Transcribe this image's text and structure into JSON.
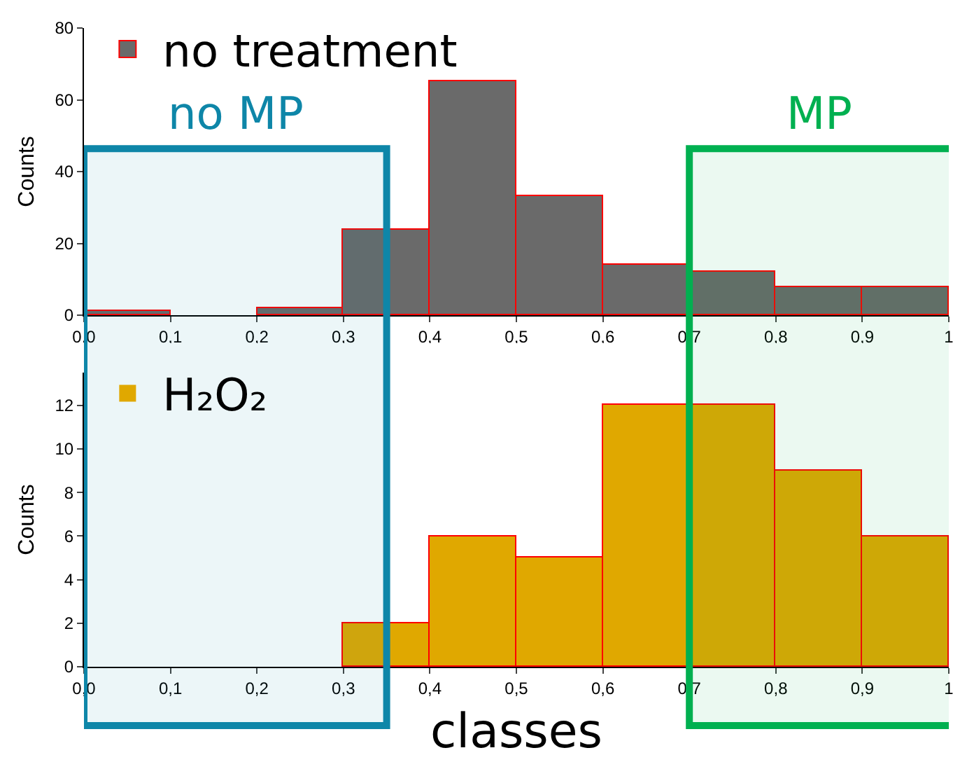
{
  "chart_data": [
    {
      "type": "histogram",
      "ylabel": "Counts",
      "bins": [
        0,
        0.1,
        0.2,
        0.3,
        0.4,
        0.5,
        0.6,
        0.7,
        0.8,
        0.9,
        1
      ],
      "series": [
        {
          "name": "no treatment",
          "color": "#6a6a6a",
          "values": [
            1,
            0,
            2,
            24,
            65,
            33,
            14,
            12,
            8,
            8
          ]
        }
      ],
      "xlim": [
        0,
        1
      ],
      "xticks": [
        {
          "value": 0,
          "label": "0,0"
        },
        {
          "value": 0.1,
          "label": "0,1"
        },
        {
          "value": 0.2,
          "label": "0,2"
        },
        {
          "value": 0.3,
          "label": "0,3"
        },
        {
          "value": 0.4,
          "label": "0,4"
        },
        {
          "value": 0.5,
          "label": "0,5"
        },
        {
          "value": 0.6,
          "label": "0,6"
        },
        {
          "value": 0.7,
          "label": "0,7"
        },
        {
          "value": 0.8,
          "label": "0,8"
        },
        {
          "value": 0.9,
          "label": "0,9"
        },
        1
      ],
      "ylim": [
        0,
        80
      ],
      "yticks": [
        0,
        20,
        40,
        60,
        80
      ],
      "bands": [
        {
          "axis": "x",
          "from": 0,
          "to": 0.35,
          "label": "no MP",
          "color": "#0e86a8"
        },
        {
          "axis": "x",
          "from": 0.7,
          "to": 1,
          "label": "MP",
          "color": "#00b050"
        }
      ],
      "grid": false,
      "legend": "top left"
    },
    {
      "type": "histogram",
      "xlabel": "classes",
      "ylabel": "Counts",
      "bins": [
        0,
        0.1,
        0.2,
        0.3,
        0.4,
        0.5,
        0.6,
        0.7,
        0.8,
        0.9,
        1
      ],
      "series": [
        {
          "name": "H₂O₂",
          "color": "#e0a800",
          "values": [
            0,
            0,
            0,
            2,
            6,
            5,
            12,
            12,
            9,
            6
          ]
        }
      ],
      "xlim": [
        0,
        1
      ],
      "xticks": [
        {
          "value": 0,
          "label": "0,0"
        },
        {
          "value": 0.1,
          "label": "0,1"
        },
        {
          "value": 0.2,
          "label": "0,2"
        },
        {
          "value": 0.3,
          "label": "0,3"
        },
        {
          "value": 0.4,
          "label": "0,4"
        },
        {
          "value": 0.5,
          "label": "0,5"
        },
        {
          "value": 0.6,
          "label": "0,6"
        },
        {
          "value": 0.7,
          "label": "0,7"
        },
        {
          "value": 0.8,
          "label": "0,8"
        },
        {
          "value": 0.9,
          "label": "0,9"
        },
        1
      ],
      "ylim": [
        0,
        13.5
      ],
      "yticks": [
        0,
        2,
        4,
        6,
        8,
        10,
        12
      ],
      "bands": [
        {
          "axis": "x",
          "from": 0,
          "to": 0.35,
          "color": "#0e86a8"
        },
        {
          "axis": "x",
          "from": 0.7,
          "to": 1,
          "color": "#00b050"
        }
      ],
      "grid": false,
      "legend": "top left"
    }
  ]
}
